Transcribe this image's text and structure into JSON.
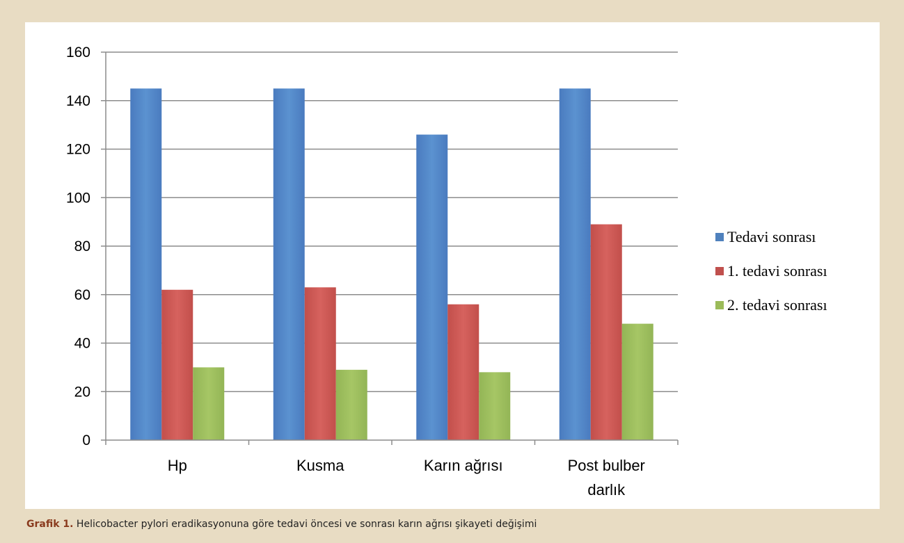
{
  "chart_data": {
    "type": "bar",
    "categories": [
      "Hp",
      "Kusma",
      "Karın ağrısı",
      "Post bulber darlık"
    ],
    "series": [
      {
        "name": "Tedavi sonrası",
        "color": "#4f81bd",
        "values": [
          145,
          145,
          126,
          145
        ]
      },
      {
        "name": "1. tedavi sonrası",
        "color": "#c0504d",
        "values": [
          62,
          63,
          56,
          89
        ]
      },
      {
        "name": "2. tedavi sonrası",
        "color": "#9bbb59",
        "values": [
          30,
          29,
          28,
          48
        ]
      }
    ],
    "ylim": [
      0,
      160
    ],
    "yticks": [
      0,
      20,
      40,
      60,
      80,
      100,
      120,
      140,
      160
    ],
    "grid": true,
    "legend_position": "right"
  },
  "caption": {
    "label": "Grafik 1.",
    "text": "Helicobacter pylori eradikasyonuna göre tedavi öncesi ve sonrası karın ağrısı şikayeti değişimi"
  }
}
